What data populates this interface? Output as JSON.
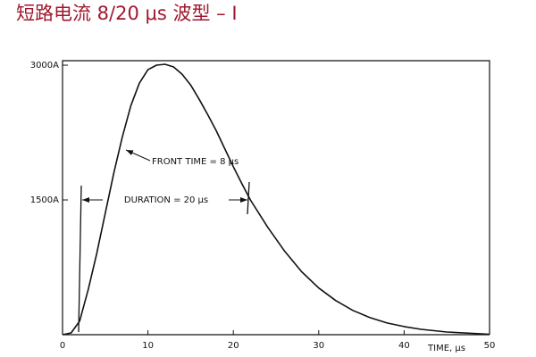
{
  "chart_data": {
    "type": "line",
    "title": "短路电流 8/20 μs 波型 – I",
    "x_label": "TIME, μs",
    "x": [
      0,
      1,
      2,
      3,
      4,
      5,
      6,
      7,
      8,
      9,
      10,
      11,
      12,
      13,
      14,
      15,
      16,
      17,
      18,
      19,
      20,
      21,
      22,
      24,
      26,
      28,
      30,
      32,
      34,
      36,
      38,
      40,
      42,
      45,
      50
    ],
    "series": [
      {
        "name": "I",
        "color": "#111111",
        "values": [
          0,
          20,
          150,
          500,
          900,
          1350,
          1800,
          2200,
          2550,
          2800,
          2950,
          3000,
          3010,
          2980,
          2900,
          2780,
          2620,
          2450,
          2270,
          2070,
          1870,
          1680,
          1500,
          1200,
          930,
          700,
          520,
          380,
          270,
          190,
          130,
          90,
          60,
          30,
          5
        ]
      }
    ],
    "xlim": [
      0,
      50
    ],
    "xticks": [
      0,
      10,
      20,
      30,
      40,
      50
    ],
    "ylim": [
      0,
      3050
    ],
    "yticks": [
      {
        "value": 1500,
        "label": "1500A"
      },
      {
        "value": 3000,
        "label": "3000A"
      }
    ],
    "annotations": [
      "FRONT TIME = 8 μs",
      "DURATION = 20 μs"
    ]
  }
}
